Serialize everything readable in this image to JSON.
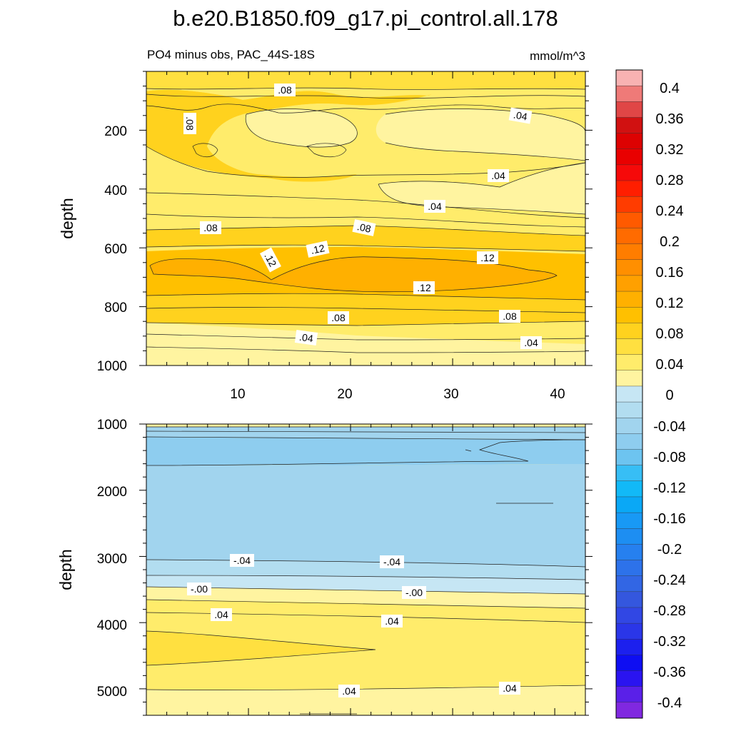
{
  "chart_data": [
    {
      "type": "contour",
      "panel": "upper",
      "title": "b.e20.B1850.f09_g17.pi_control.all.178",
      "subtitle_left": "PO4 minus obs, PAC_44S-18S",
      "subtitle_right": "mmol/m^3",
      "xlabel": "",
      "ylabel": "depth",
      "xlim": [
        0,
        43
      ],
      "ylim": [
        1000,
        0
      ],
      "x_ticks": [
        "10",
        "20",
        "30",
        "40"
      ],
      "y_ticks": [
        "200",
        "400",
        "600",
        "800",
        "1000"
      ],
      "contour_labels": [
        ".08",
        ".08",
        ".04",
        ".04",
        ".04",
        ".08",
        ".08",
        ".12",
        ".12",
        ".12",
        ".12",
        ".08",
        ".08",
        ".04",
        ".04"
      ]
    },
    {
      "type": "contour",
      "panel": "lower",
      "xlabel": "",
      "ylabel": "depth",
      "xlim": [
        0,
        43
      ],
      "ylim": [
        5400,
        1000
      ],
      "y_ticks": [
        "1000",
        "2000",
        "3000",
        "4000",
        "5000"
      ],
      "contour_labels": [
        "-.04",
        "-.04",
        "-.00",
        "-.00",
        ".04",
        ".04",
        ".04",
        ".04"
      ]
    }
  ],
  "colorbar": {
    "labels": [
      "0.4",
      "0.36",
      "0.32",
      "0.28",
      "0.24",
      "0.2",
      "0.16",
      "0.12",
      "0.08",
      "0.04",
      "0",
      "-0.04",
      "-0.08",
      "-0.12",
      "-0.16",
      "-0.2",
      "-0.24",
      "-0.28",
      "-0.32",
      "-0.36",
      "-0.4"
    ],
    "colors": [
      "#f8b2b2",
      "#ef7a78",
      "#e04646",
      "#d11111",
      "#dd0202",
      "#e90000",
      "#f60909",
      "#ff1e00",
      "#ff3c00",
      "#ff5a00",
      "#ff6b00",
      "#ff7d00",
      "#ff8f00",
      "#ffa000",
      "#ffb000",
      "#ffc000",
      "#ffd21e",
      "#ffe040",
      "#ffec6b",
      "#fff4a0",
      "#c6e6f4",
      "#b2ddf0",
      "#a1d4ee",
      "#8ecdef",
      "#6dc4f0",
      "#37bef5",
      "#12b9f7",
      "#0aa8f6",
      "#1899f5",
      "#1d8ef2",
      "#2680ef",
      "#2d72ea",
      "#3266e4",
      "#3457de",
      "#3147e4",
      "#2a36e8",
      "#1c20ee",
      "#0e0ef2",
      "#2a14f0",
      "#5a20e8",
      "#8028e0"
    ]
  }
}
